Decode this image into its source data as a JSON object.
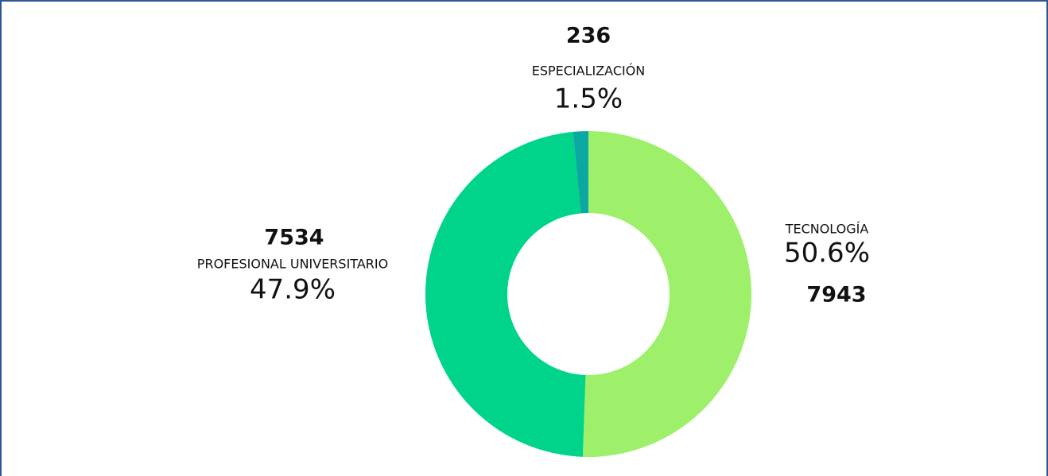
{
  "chart_data": {
    "type": "donut",
    "categories": [
      "TECNOLOGÍA",
      "PROFESIONAL UNIVERSITARIO",
      "ESPECIALIZACIÓN"
    ],
    "values": [
      7943,
      7534,
      236
    ],
    "percent_labels": [
      "50.6%",
      "47.9%",
      "1.5%"
    ],
    "colors": [
      "#9ef06a",
      "#00d48a",
      "#0aa8a0"
    ]
  }
}
